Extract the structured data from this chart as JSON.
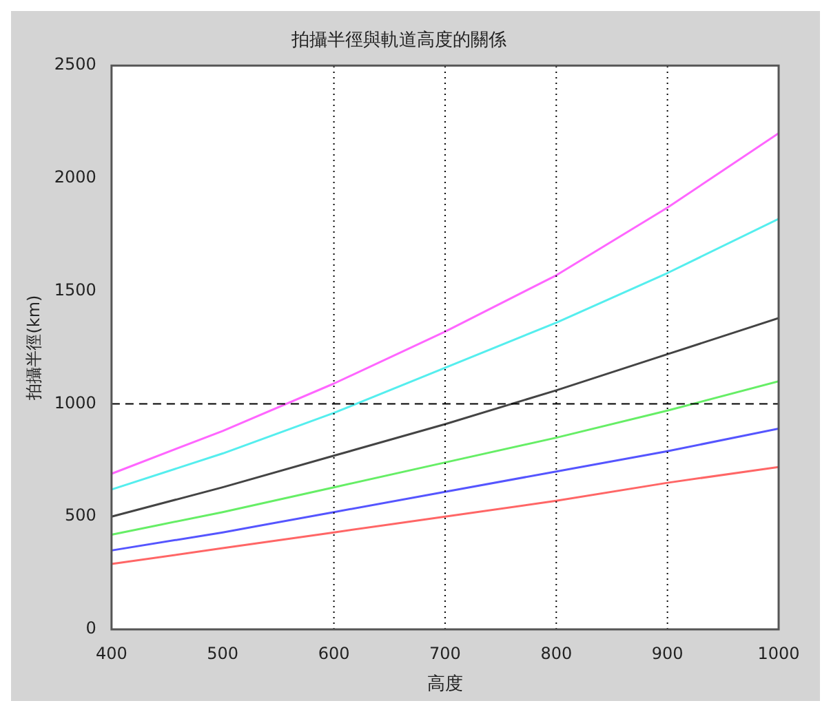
{
  "chart_data": {
    "type": "line",
    "title": "拍攝半徑與軌道高度的關係",
    "xlabel": "高度",
    "ylabel": "拍攝半徑(km)",
    "x": [
      400,
      500,
      600,
      700,
      800,
      900,
      1000
    ],
    "series": [
      {
        "color": "#ff66ff",
        "values": [
          690,
          880,
          1090,
          1320,
          1570,
          1870,
          2200
        ]
      },
      {
        "color": "#55eeee",
        "values": [
          620,
          780,
          960,
          1160,
          1360,
          1580,
          1820
        ]
      },
      {
        "color": "#444444",
        "values": [
          500,
          630,
          770,
          910,
          1060,
          1220,
          1380
        ]
      },
      {
        "color": "#66ee66",
        "values": [
          420,
          520,
          630,
          740,
          850,
          970,
          1100
        ]
      },
      {
        "color": "#5555ff",
        "values": [
          350,
          430,
          520,
          610,
          700,
          790,
          890
        ]
      },
      {
        "color": "#ff6666",
        "values": [
          290,
          360,
          430,
          500,
          570,
          650,
          720
        ]
      }
    ],
    "xlim": [
      400,
      1000
    ],
    "xticks": [
      400,
      500,
      600,
      700,
      800,
      900,
      1000
    ],
    "ylim": [
      0,
      2500
    ],
    "yticks": [
      0,
      500,
      1000,
      1500,
      2000,
      2500
    ],
    "ref_lines": [
      {
        "axis": "y",
        "value": 1000,
        "color": "#000000",
        "line_style": "dashed"
      },
      {
        "axis": "x",
        "value": 600,
        "color": "#000000",
        "line_style": "dotted"
      },
      {
        "axis": "x",
        "value": 700,
        "color": "#000000",
        "line_style": "dotted"
      },
      {
        "axis": "x",
        "value": 800,
        "color": "#000000",
        "line_style": "dotted"
      },
      {
        "axis": "x",
        "value": 900,
        "color": "#000000",
        "line_style": "dotted"
      }
    ],
    "grid": false,
    "legend": false,
    "marker": "none",
    "line_style": "solid"
  }
}
